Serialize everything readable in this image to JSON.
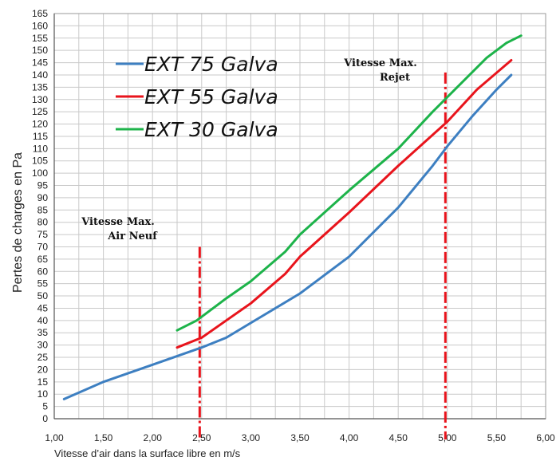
{
  "chart_data": {
    "type": "line",
    "xlabel": "Vitesse d’air dans la surface libre en m/s",
    "ylabel": "Pertes de charges en Pa",
    "xlim": [
      1.0,
      6.0
    ],
    "ylim": [
      0,
      165
    ],
    "x_ticks": [
      "1,00",
      "1,50",
      "2,00",
      "2,50",
      "3,00",
      "3,50",
      "4,00",
      "4,50",
      "5,00",
      "5,50",
      "6,00"
    ],
    "y_ticks": [
      "0",
      "5",
      "10",
      "15",
      "20",
      "25",
      "30",
      "35",
      "40",
      "45",
      "50",
      "55",
      "60",
      "65",
      "70",
      "75",
      "80",
      "85",
      "90",
      "95",
      "100",
      "105",
      "110",
      "115",
      "120",
      "125",
      "130",
      "135",
      "140",
      "145",
      "150",
      "155",
      "160",
      "165"
    ],
    "grid": true,
    "legend_position": "top-left",
    "series": [
      {
        "name": "EXT 75 Galva",
        "color": "#3d7fc1",
        "points": [
          [
            1.1,
            8
          ],
          [
            1.5,
            15
          ],
          [
            2.0,
            22
          ],
          [
            2.5,
            29
          ],
          [
            2.75,
            33
          ],
          [
            3.0,
            39
          ],
          [
            3.5,
            51
          ],
          [
            4.0,
            66
          ],
          [
            4.2,
            74
          ],
          [
            4.5,
            86
          ],
          [
            4.85,
            103
          ],
          [
            5.0,
            111
          ],
          [
            5.25,
            123
          ],
          [
            5.5,
            134
          ],
          [
            5.65,
            140
          ]
        ]
      },
      {
        "name": "EXT 55 Galva",
        "color": "#e8141c",
        "points": [
          [
            2.25,
            29
          ],
          [
            2.5,
            33
          ],
          [
            2.75,
            40
          ],
          [
            3.0,
            47
          ],
          [
            3.35,
            59
          ],
          [
            3.5,
            66
          ],
          [
            4.0,
            84
          ],
          [
            4.5,
            103
          ],
          [
            5.0,
            121
          ],
          [
            5.3,
            134
          ],
          [
            5.65,
            146
          ]
        ]
      },
      {
        "name": "EXT 30 Galva",
        "color": "#1db34a",
        "points": [
          [
            2.25,
            36
          ],
          [
            2.45,
            40
          ],
          [
            2.75,
            49
          ],
          [
            3.0,
            56
          ],
          [
            3.35,
            68
          ],
          [
            3.5,
            75
          ],
          [
            4.0,
            93
          ],
          [
            4.5,
            110
          ],
          [
            4.85,
            125
          ],
          [
            5.0,
            131
          ],
          [
            5.4,
            147
          ],
          [
            5.6,
            153
          ],
          [
            5.75,
            156
          ]
        ]
      }
    ],
    "reference_lines": [
      {
        "x": 2.48,
        "color": "#e8141c",
        "style": "dash-dot",
        "label_lines": [
          "Vitesse Max.",
          "Air Neuf"
        ]
      },
      {
        "x": 4.98,
        "color": "#e8141c",
        "style": "dash-dot",
        "label_lines": [
          "Vitesse Max.",
          "Rejet"
        ]
      }
    ]
  }
}
